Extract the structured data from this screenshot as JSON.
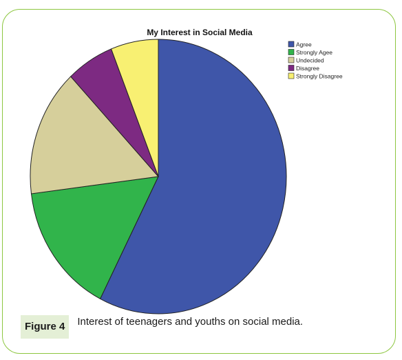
{
  "chart_data": {
    "type": "pie",
    "title": "My Interest in Social Media",
    "legend_position": "top-right",
    "categories": [
      "Agree",
      "Strongly Agee",
      "Undecided",
      "Disagree",
      "Strongly Disagree"
    ],
    "values": [
      57.5,
      15.5,
      15.0,
      6.0,
      6.0
    ],
    "colors": [
      "#3f56a9",
      "#31b44b",
      "#d6cf9b",
      "#7d2a82",
      "#f8f072"
    ]
  },
  "caption": {
    "figure_label": "Figure 4",
    "text": "Interest of teenagers and youths on social media."
  }
}
